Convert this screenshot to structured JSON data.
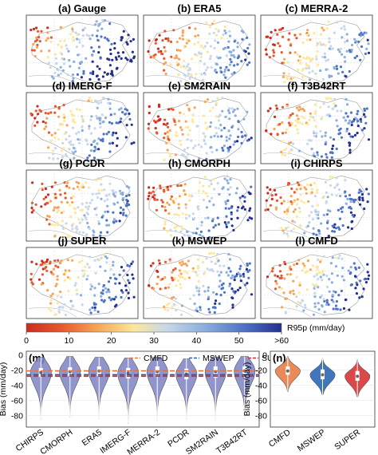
{
  "maps": {
    "panels": [
      {
        "title": "(a) Gauge",
        "pattern": "gauge"
      },
      {
        "title": "(b) ERA5",
        "pattern": "warm"
      },
      {
        "title": "(c) MERRA-2",
        "pattern": "warm"
      },
      {
        "title": "(d) IMERG-F",
        "pattern": "mixed"
      },
      {
        "title": "(e) SM2RAIN",
        "pattern": "warm"
      },
      {
        "title": "(f) T3B42RT",
        "pattern": "mixed"
      },
      {
        "title": "(g) PCDR",
        "pattern": "warm"
      },
      {
        "title": "(h) CMORPH",
        "pattern": "mixed"
      },
      {
        "title": "(i) CHIRPS",
        "pattern": "mixed"
      },
      {
        "title": "(j) SUPER",
        "pattern": "mixed"
      },
      {
        "title": "(k) MSWEP",
        "pattern": "mixed"
      },
      {
        "title": "(l) CMFD",
        "pattern": "mixed"
      }
    ]
  },
  "colorbar": {
    "ticks": [
      "0",
      "10",
      "20",
      "30",
      "40",
      "50",
      ">60"
    ],
    "label": "R95p (mm/day)",
    "colors": [
      "#cc2b1f",
      "#e8592f",
      "#f7a657",
      "#fde79a",
      "#c8d8ea",
      "#8aaedd",
      "#4f74c7",
      "#23308e"
    ]
  },
  "chart_data": [
    {
      "type": "violin",
      "panel_label": "(m)",
      "ylabel": "Bias (mm/day)",
      "ylim": [
        -95,
        5
      ],
      "yticks": [
        0,
        -20,
        -40,
        -60,
        -80
      ],
      "grid": true,
      "categories": [
        "CHIRPS",
        "CMORPH",
        "ERA5",
        "IMERG-F",
        "MERRA-2",
        "PCDR",
        "SM2RAIN",
        "T3B42RT"
      ],
      "violins": [
        {
          "median": -23,
          "q1": -29,
          "q3": -17,
          "min": -85,
          "max": -3
        },
        {
          "median": -22,
          "q1": -28,
          "q3": -16,
          "min": -82,
          "max": -2
        },
        {
          "median": -21,
          "q1": -28,
          "q3": -15,
          "min": -84,
          "max": -3
        },
        {
          "median": -24,
          "q1": -31,
          "q3": -17,
          "min": -90,
          "max": -4
        },
        {
          "median": -22,
          "q1": -29,
          "q3": -15,
          "min": -86,
          "max": -3
        },
        {
          "median": -25,
          "q1": -32,
          "q3": -18,
          "min": -84,
          "max": -5
        },
        {
          "median": -22,
          "q1": -30,
          "q3": -15,
          "min": -85,
          "max": -3
        },
        {
          "median": -21,
          "q1": -28,
          "q3": -15,
          "min": -84,
          "max": -2
        }
      ],
      "reference_lines": [
        {
          "name": "CMFD",
          "value": -21,
          "color": "#e8743b"
        },
        {
          "name": "MSWEP",
          "value": -26,
          "color": "#1f5fb0"
        },
        {
          "name": "SUPER",
          "value": -28,
          "color": "#d62728"
        }
      ],
      "legend": "top"
    },
    {
      "type": "violin",
      "panel_label": "(n)",
      "ylabel": "Bias (mm/day)",
      "ylim": [
        -95,
        5
      ],
      "yticks": [
        0,
        -20,
        -40,
        -60,
        -80
      ],
      "grid": true,
      "categories": [
        "CMFD",
        "MSWEP",
        "SUPER"
      ],
      "violins": [
        {
          "median": -21,
          "q1": -26,
          "q3": -15,
          "min": -48,
          "max": -2,
          "color": "#e8743b"
        },
        {
          "median": -26,
          "q1": -32,
          "q3": -19,
          "min": -52,
          "max": -4,
          "color": "#1f5fb0"
        },
        {
          "median": -28,
          "q1": -34,
          "q3": -21,
          "min": -55,
          "max": -6,
          "color": "#d62728"
        }
      ]
    }
  ]
}
